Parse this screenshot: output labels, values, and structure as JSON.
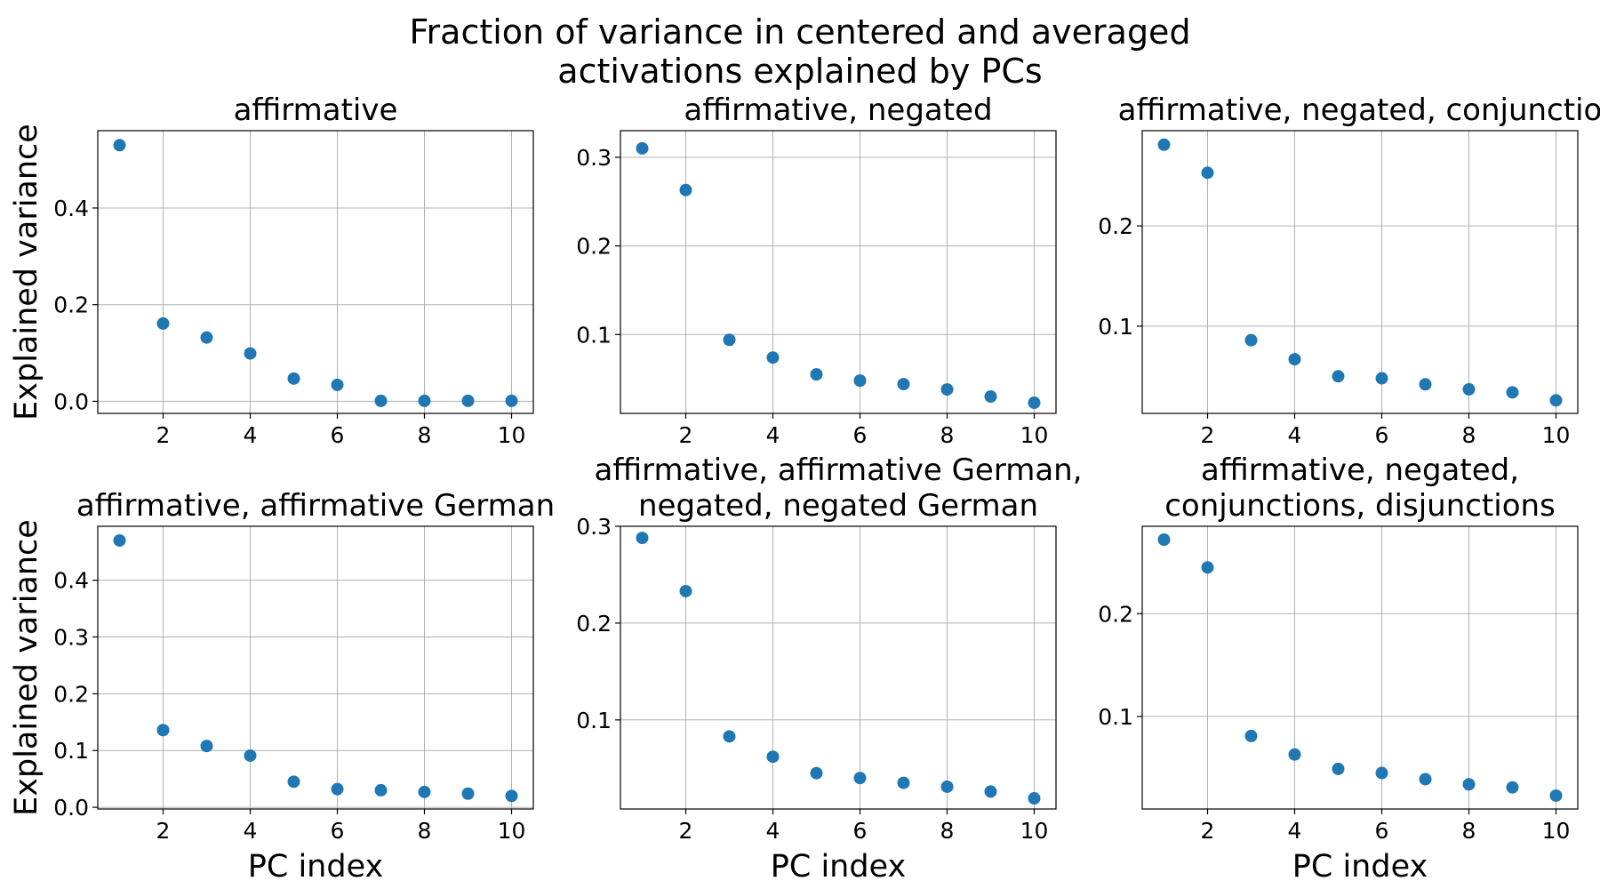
{
  "figure": {
    "title_line1": "Fraction of variance in centered and averaged",
    "title_line2": "activations explained by PCs"
  },
  "chart_data": [
    {
      "type": "scatter",
      "title": [
        "affirmative"
      ],
      "xlabel": "",
      "ylabel": "Explained variance",
      "x": [
        1,
        2,
        3,
        4,
        5,
        6,
        7,
        8,
        9,
        10
      ],
      "values": [
        0.53,
        0.161,
        0.132,
        0.099,
        0.047,
        0.034,
        0.001,
        0.001,
        0.001,
        0.001
      ],
      "xlim": [
        0.5,
        10.5
      ],
      "ylim": [
        -0.025,
        0.56
      ],
      "xticks": [
        2,
        4,
        6,
        8,
        10
      ],
      "yticks": [
        0.0,
        0.2,
        0.4
      ],
      "ytick_labels": [
        "0.0",
        "0.2",
        "0.4"
      ],
      "grid": true,
      "color": "#1f77b4"
    },
    {
      "type": "scatter",
      "title": [
        "affirmative, negated"
      ],
      "xlabel": "",
      "ylabel": "",
      "x": [
        1,
        2,
        3,
        4,
        5,
        6,
        7,
        8,
        9,
        10
      ],
      "values": [
        0.31,
        0.263,
        0.094,
        0.074,
        0.055,
        0.048,
        0.044,
        0.038,
        0.03,
        0.023
      ],
      "xlim": [
        0.5,
        10.5
      ],
      "ylim": [
        0.011,
        0.33
      ],
      "xticks": [
        2,
        4,
        6,
        8,
        10
      ],
      "yticks": [
        0.1,
        0.2,
        0.3
      ],
      "ytick_labels": [
        "0.1",
        "0.2",
        "0.3"
      ],
      "grid": true,
      "color": "#1f77b4"
    },
    {
      "type": "scatter",
      "title": [
        "affirmative, negated, conjunctio"
      ],
      "xlabel": "",
      "ylabel": "",
      "x": [
        1,
        2,
        3,
        4,
        5,
        6,
        7,
        8,
        9,
        10
      ],
      "values": [
        0.281,
        0.253,
        0.086,
        0.067,
        0.05,
        0.048,
        0.042,
        0.037,
        0.034,
        0.026
      ],
      "xlim": [
        0.5,
        10.5
      ],
      "ylim": [
        0.013,
        0.295
      ],
      "xticks": [
        2,
        4,
        6,
        8,
        10
      ],
      "yticks": [
        0.1,
        0.2
      ],
      "ytick_labels": [
        "0.1",
        "0.2"
      ],
      "grid": true,
      "color": "#1f77b4"
    },
    {
      "type": "scatter",
      "title": [
        "affirmative, affirmative German"
      ],
      "xlabel": "PC index",
      "ylabel": "Explained variance",
      "x": [
        1,
        2,
        3,
        4,
        5,
        6,
        7,
        8,
        9,
        10
      ],
      "values": [
        0.47,
        0.136,
        0.108,
        0.091,
        0.045,
        0.032,
        0.03,
        0.027,
        0.024,
        0.02
      ],
      "xlim": [
        0.5,
        10.5
      ],
      "ylim": [
        -0.003,
        0.495
      ],
      "xticks": [
        2,
        4,
        6,
        8,
        10
      ],
      "yticks": [
        0.0,
        0.1,
        0.2,
        0.3,
        0.4
      ],
      "ytick_labels": [
        "0.0",
        "0.1",
        "0.2",
        "0.3",
        "0.4"
      ],
      "grid": true,
      "color": "#1f77b4"
    },
    {
      "type": "scatter",
      "title": [
        "affirmative, affirmative German,",
        "negated, negated German"
      ],
      "xlabel": "PC index",
      "ylabel": "",
      "x": [
        1,
        2,
        3,
        4,
        5,
        6,
        7,
        8,
        9,
        10
      ],
      "values": [
        0.288,
        0.233,
        0.083,
        0.062,
        0.045,
        0.04,
        0.035,
        0.031,
        0.026,
        0.019
      ],
      "xlim": [
        0.5,
        10.5
      ],
      "ylim": [
        0.008,
        0.3
      ],
      "xticks": [
        2,
        4,
        6,
        8,
        10
      ],
      "yticks": [
        0.1,
        0.2,
        0.3
      ],
      "ytick_labels": [
        "0.1",
        "0.2",
        "0.3"
      ],
      "grid": true,
      "color": "#1f77b4"
    },
    {
      "type": "scatter",
      "title": [
        "affirmative, negated,",
        "conjunctions, disjunctions"
      ],
      "xlabel": "PC index",
      "ylabel": "",
      "x": [
        1,
        2,
        3,
        4,
        5,
        6,
        7,
        8,
        9,
        10
      ],
      "values": [
        0.272,
        0.245,
        0.081,
        0.063,
        0.049,
        0.045,
        0.039,
        0.034,
        0.031,
        0.023
      ],
      "xlim": [
        0.5,
        10.5
      ],
      "ylim": [
        0.01,
        0.285
      ],
      "xticks": [
        2,
        4,
        6,
        8,
        10
      ],
      "yticks": [
        0.1,
        0.2
      ],
      "ytick_labels": [
        "0.1",
        "0.2"
      ],
      "grid": true,
      "color": "#1f77b4"
    }
  ]
}
